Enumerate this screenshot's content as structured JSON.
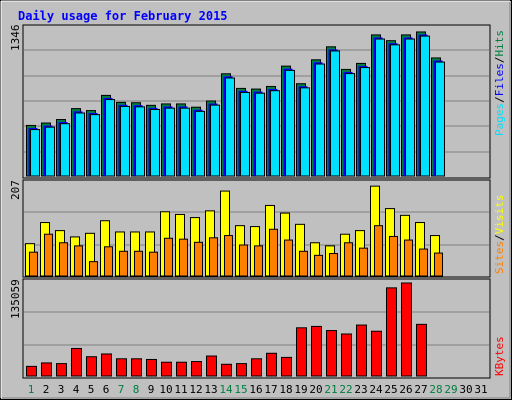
{
  "chart_data": [
    {
      "type": "bar",
      "title": "Daily usage for February 2015",
      "ylabel_parts": [
        "Pages",
        "Files",
        "Hits"
      ],
      "ymax_label": "1346",
      "ymax": 1346,
      "colors": {
        "hits": "#008040",
        "files": "#0000ff",
        "pages": "#00e0ff"
      },
      "categories": [
        "1",
        "2",
        "3",
        "4",
        "5",
        "6",
        "7",
        "8",
        "9",
        "10",
        "11",
        "12",
        "13",
        "14",
        "15",
        "16",
        "17",
        "18",
        "19",
        "20",
        "21",
        "22",
        "23",
        "24",
        "25",
        "26",
        "27",
        "28",
        "29",
        "30",
        "31"
      ],
      "series": [
        {
          "name": "Hits",
          "values": [
            463,
            485,
            517,
            617,
            599,
            738,
            674,
            671,
            647,
            660,
            660,
            630,
            687,
            936,
            802,
            796,
            820,
            1006,
            845,
            1064,
            1183,
            976,
            1031,
            1292,
            1239,
            1292,
            1319,
            1081,
            0,
            0,
            0
          ]
        },
        {
          "name": "Files",
          "values": [
            440,
            462,
            495,
            592,
            577,
            715,
            652,
            649,
            624,
            637,
            637,
            607,
            664,
            913,
            780,
            773,
            797,
            983,
            822,
            1041,
            1160,
            953,
            1008,
            1269,
            1216,
            1269,
            1296,
            1058,
            0,
            0,
            0
          ]
        },
        {
          "name": "Pages",
          "values": [
            425,
            447,
            479,
            577,
            562,
            700,
            637,
            633,
            609,
            621,
            621,
            592,
            649,
            897,
            765,
            758,
            781,
            967,
            807,
            1025,
            1145,
            938,
            993,
            1254,
            1201,
            1254,
            1281,
            1043,
            0,
            0,
            0
          ]
        }
      ]
    },
    {
      "type": "bar",
      "ylabel_parts": [
        "Sites",
        "Visits"
      ],
      "ymax_label": "207",
      "ymax": 207,
      "colors": {
        "visits": "#ffff00",
        "sites": "#ff8000"
      },
      "categories": [
        "1",
        "2",
        "3",
        "4",
        "5",
        "6",
        "7",
        "8",
        "9",
        "10",
        "11",
        "12",
        "13",
        "14",
        "15",
        "16",
        "17",
        "18",
        "19",
        "20",
        "21",
        "22",
        "23",
        "24",
        "25",
        "26",
        "27",
        "28",
        "29",
        "30",
        "31"
      ],
      "series": [
        {
          "name": "Visits",
          "values": [
            72,
            119,
            101,
            87,
            95,
            123,
            98,
            98,
            98,
            143,
            137,
            130,
            145,
            189,
            112,
            110,
            157,
            140,
            115,
            74,
            67,
            93,
            101,
            200,
            150,
            135,
            119,
            90,
            0,
            0,
            0
          ]
        },
        {
          "name": "Sites",
          "values": [
            53,
            93,
            74,
            67,
            32,
            65,
            55,
            55,
            53,
            84,
            82,
            75,
            85,
            90,
            69,
            67,
            104,
            80,
            55,
            46,
            50,
            74,
            62,
            112,
            88,
            80,
            60,
            51,
            0,
            0,
            0
          ]
        }
      ]
    },
    {
      "type": "bar",
      "ylabel": "KBytes",
      "ymax_label": "135059",
      "ymax": 135059,
      "colors": {
        "kbytes": "#ff0000"
      },
      "categories": [
        "1",
        "2",
        "3",
        "4",
        "5",
        "6",
        "7",
        "8",
        "9",
        "10",
        "11",
        "12",
        "13",
        "14",
        "15",
        "16",
        "17",
        "18",
        "19",
        "20",
        "21",
        "22",
        "23",
        "24",
        "25",
        "26",
        "27",
        "28",
        "29",
        "30",
        "31"
      ],
      "series": [
        {
          "name": "KBytes",
          "values": [
            14000,
            19000,
            18000,
            40000,
            28000,
            32000,
            25000,
            25000,
            24000,
            20000,
            20000,
            21000,
            29000,
            17000,
            18000,
            25000,
            33000,
            27000,
            70000,
            72000,
            66000,
            61000,
            74000,
            65000,
            128000,
            135059,
            75000,
            0,
            0,
            0,
            0
          ]
        }
      ]
    }
  ],
  "x_labels": [
    "1",
    "2",
    "3",
    "4",
    "5",
    "6",
    "7",
    "8",
    "9",
    "10",
    "11",
    "12",
    "13",
    "14",
    "15",
    "16",
    "17",
    "18",
    "19",
    "20",
    "21",
    "22",
    "23",
    "24",
    "25",
    "26",
    "27",
    "28",
    "29",
    "30",
    "31"
  ],
  "weekend_days": [
    "1",
    "7",
    "8",
    "14",
    "15",
    "21",
    "22",
    "28",
    "29"
  ],
  "colors": {
    "title": "#0000ff",
    "plot_bg": "#c0c0c0",
    "grid": "#808080",
    "weekday_label": "#000000",
    "weekend_label": "#008040"
  }
}
